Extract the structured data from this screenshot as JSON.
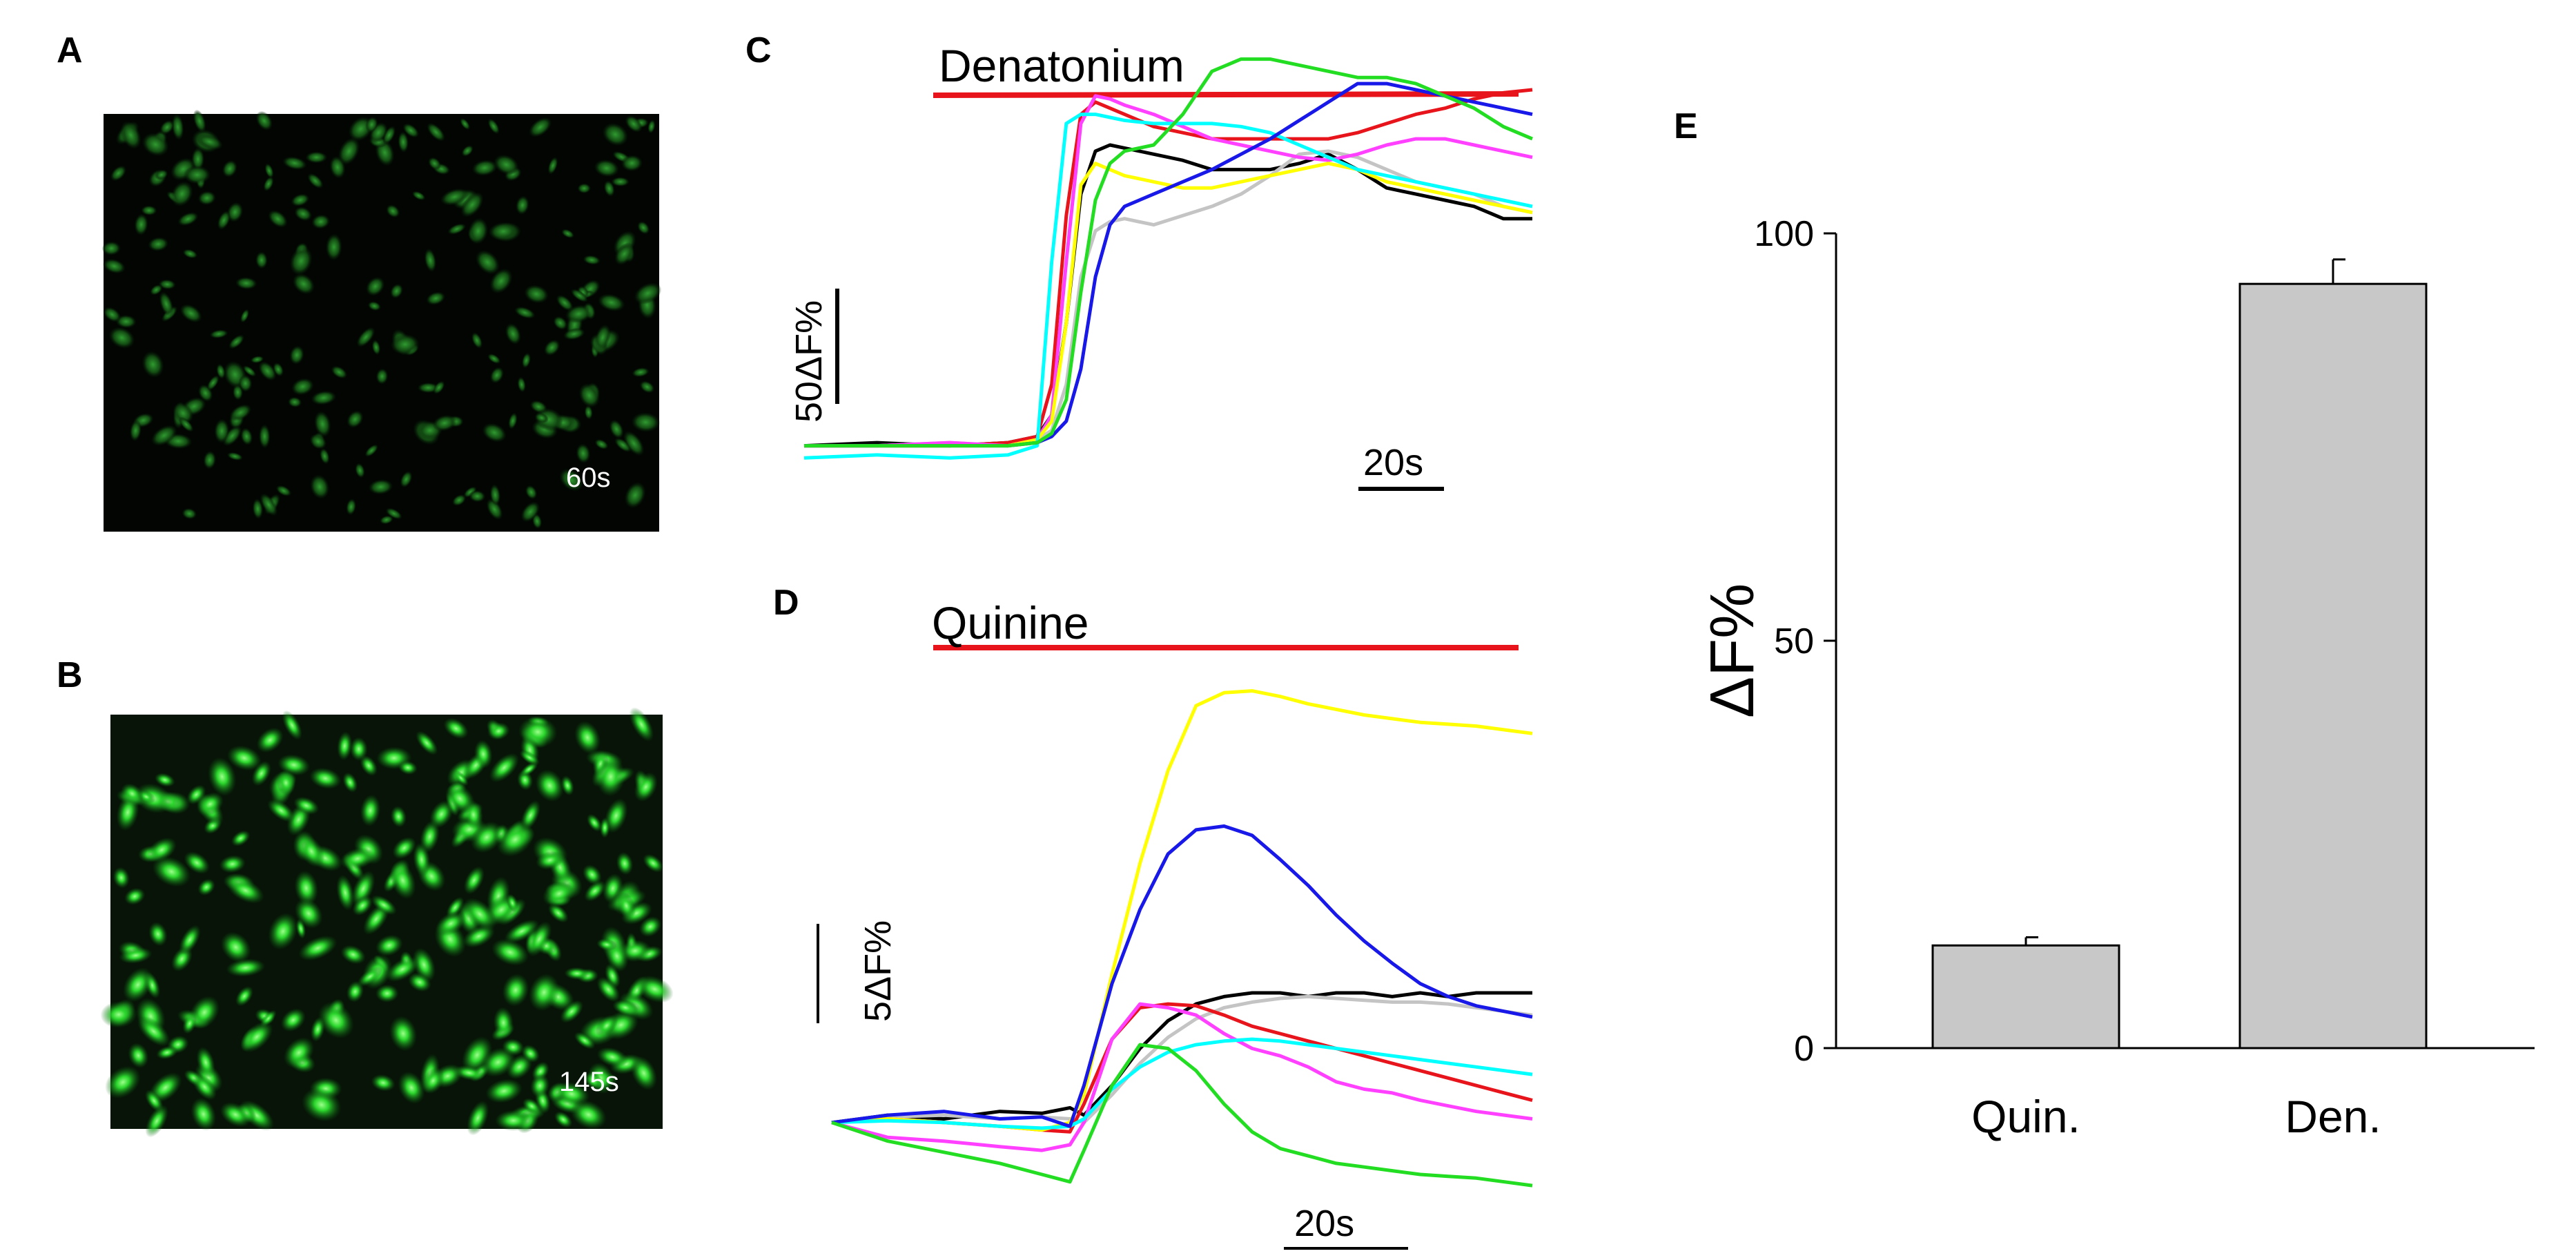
{
  "panel_letters": {
    "a": "A",
    "b": "B",
    "c": "C",
    "d": "D",
    "e": "E"
  },
  "micrographs": {
    "a": {
      "timestamp": "60s"
    },
    "b": {
      "timestamp": "145s"
    }
  },
  "colors": {
    "stim_bar": "#e8141c",
    "cell_bg_dim": "#020502",
    "cell_bg_bright": "#0a1a0a",
    "cell_dim": "#1c7a1c",
    "cell_bright": "#27d22a",
    "bar_fill": "#c8c8c8",
    "traces": [
      "#000000",
      "#c4c4c4",
      "#e8141c",
      "#ff40ff",
      "#ffff00",
      "#00ffff",
      "#1818e8",
      "#22dd22"
    ]
  },
  "chart_data": [
    {
      "type": "line",
      "panel": "C",
      "title": "Denatonium",
      "stimulus_label": "Denatonium",
      "scale_bar_y_label": "50ΔF%",
      "scale_bar_y_value": 50,
      "scale_bar_x_label": "20s",
      "scale_bar_x_value": 20,
      "xlim": [
        0,
        100
      ],
      "ylim": [
        -10,
        125
      ],
      "stimulus_start": 18,
      "stimulus_end": 100,
      "x": [
        0,
        10,
        20,
        28,
        32,
        34,
        36,
        38,
        40,
        42,
        44,
        48,
        52,
        56,
        60,
        64,
        68,
        72,
        76,
        80,
        84,
        88,
        92,
        96,
        100
      ],
      "series": [
        {
          "name": "black",
          "color_index": 0,
          "values": [
            0,
            1,
            0,
            1,
            3,
            10,
            40,
            82,
            96,
            98,
            97,
            95,
            93,
            90,
            90,
            90,
            92,
            95,
            90,
            84,
            82,
            80,
            78,
            74,
            74
          ]
        },
        {
          "name": "gray",
          "color_index": 1,
          "values": [
            0,
            0,
            1,
            0,
            2,
            5,
            20,
            55,
            70,
            73,
            74,
            72,
            75,
            78,
            82,
            88,
            95,
            96,
            94,
            90,
            86,
            84,
            82,
            78,
            76
          ]
        },
        {
          "name": "red",
          "color_index": 2,
          "values": [
            0,
            0,
            0,
            1,
            3,
            20,
            75,
            108,
            112,
            110,
            108,
            104,
            102,
            100,
            100,
            100,
            100,
            100,
            102,
            105,
            108,
            110,
            113,
            115,
            116
          ]
        },
        {
          "name": "magenta",
          "color_index": 3,
          "values": [
            0,
            0,
            1,
            0,
            2,
            10,
            60,
            105,
            114,
            113,
            111,
            108,
            104,
            100,
            98,
            96,
            94,
            93,
            95,
            98,
            100,
            100,
            98,
            96,
            94
          ]
        },
        {
          "name": "yellow",
          "color_index": 4,
          "values": [
            0,
            0,
            0,
            0,
            2,
            8,
            40,
            85,
            92,
            90,
            88,
            86,
            84,
            84,
            86,
            88,
            90,
            92,
            90,
            86,
            84,
            82,
            80,
            78,
            76
          ]
        },
        {
          "name": "cyan",
          "color_index": 5,
          "values": [
            -4,
            -3,
            -4,
            -3,
            0,
            60,
            105,
            108,
            108,
            107,
            106,
            105,
            105,
            105,
            104,
            102,
            98,
            94,
            90,
            88,
            86,
            84,
            82,
            80,
            78
          ]
        },
        {
          "name": "blue",
          "color_index": 6,
          "values": [
            0,
            0,
            0,
            0,
            1,
            3,
            8,
            25,
            55,
            72,
            78,
            82,
            86,
            90,
            95,
            100,
            106,
            112,
            118,
            118,
            116,
            114,
            112,
            110,
            108
          ]
        },
        {
          "name": "green",
          "color_index": 7,
          "values": [
            0,
            0,
            0,
            0,
            1,
            4,
            15,
            50,
            80,
            92,
            96,
            98,
            108,
            122,
            126,
            126,
            124,
            122,
            120,
            120,
            118,
            114,
            110,
            104,
            100
          ]
        }
      ]
    },
    {
      "type": "line",
      "panel": "D",
      "title": "Quinine",
      "stimulus_label": "Quinine",
      "scale_bar_y_label": "5ΔF%",
      "scale_bar_y_value": 5,
      "scale_bar_x_label": "20s",
      "scale_bar_x_value": 20,
      "xlim": [
        0,
        100
      ],
      "ylim": [
        -5,
        25
      ],
      "stimulus_start": 15,
      "stimulus_end": 100,
      "x": [
        0,
        8,
        16,
        24,
        30,
        34,
        36,
        40,
        44,
        48,
        52,
        56,
        60,
        64,
        68,
        72,
        76,
        80,
        84,
        88,
        92,
        96,
        100
      ],
      "series": [
        {
          "name": "black",
          "color_index": 0,
          "values": [
            0,
            0.4,
            0.2,
            0.6,
            0.5,
            0.8,
            0.4,
            2.0,
            4.0,
            5.5,
            6.4,
            6.8,
            7.0,
            7.0,
            6.8,
            7.0,
            7.0,
            6.8,
            7.0,
            6.8,
            7.0,
            7.0,
            7.0
          ]
        },
        {
          "name": "gray",
          "color_index": 1,
          "values": [
            0,
            0.3,
            0.4,
            0.2,
            0.3,
            0.2,
            0,
            1.5,
            3.2,
            4.6,
            5.6,
            6.2,
            6.5,
            6.7,
            6.8,
            6.7,
            6.6,
            6.5,
            6.5,
            6.4,
            6.2,
            6.0,
            5.8
          ]
        },
        {
          "name": "red",
          "color_index": 2,
          "values": [
            0,
            0.2,
            0,
            -0.2,
            -0.4,
            -0.5,
            1.0,
            4.5,
            6.2,
            6.4,
            6.3,
            5.8,
            5.2,
            4.8,
            4.4,
            4.0,
            3.6,
            3.2,
            2.8,
            2.4,
            2.0,
            1.6,
            1.2
          ]
        },
        {
          "name": "magenta",
          "color_index": 3,
          "values": [
            0,
            -0.8,
            -1.0,
            -1.3,
            -1.5,
            -1.2,
            0,
            4.5,
            6.4,
            6.2,
            5.8,
            4.8,
            4.0,
            3.6,
            3.0,
            2.2,
            1.8,
            1.6,
            1.2,
            0.9,
            0.6,
            0.4,
            0.2
          ]
        },
        {
          "name": "yellow",
          "color_index": 4,
          "values": [
            0,
            0.2,
            0,
            -0.2,
            -0.4,
            0,
            1.5,
            8.0,
            14.0,
            19.0,
            22.5,
            23.2,
            23.3,
            23.0,
            22.6,
            22.3,
            22.0,
            21.8,
            21.6,
            21.5,
            21.4,
            21.2,
            21.0
          ]
        },
        {
          "name": "cyan",
          "color_index": 5,
          "values": [
            0,
            0.1,
            0,
            -0.2,
            -0.3,
            -0.2,
            0.2,
            1.8,
            3.0,
            3.8,
            4.2,
            4.4,
            4.5,
            4.4,
            4.2,
            4.0,
            3.8,
            3.6,
            3.4,
            3.2,
            3.0,
            2.8,
            2.6
          ]
        },
        {
          "name": "blue",
          "color_index": 6,
          "values": [
            0,
            0.4,
            0.6,
            0.2,
            0.3,
            -0.2,
            2.0,
            7.5,
            11.5,
            14.5,
            15.8,
            16.0,
            15.5,
            14.2,
            12.8,
            11.2,
            9.8,
            8.6,
            7.5,
            6.8,
            6.3,
            6.0,
            5.7
          ]
        },
        {
          "name": "green",
          "color_index": 7,
          "values": [
            0,
            -1.0,
            -1.6,
            -2.2,
            -2.8,
            -3.2,
            -1.5,
            2.0,
            4.2,
            4.0,
            2.8,
            1.0,
            -0.5,
            -1.4,
            -1.8,
            -2.2,
            -2.4,
            -2.6,
            -2.8,
            -2.9,
            -3.0,
            -3.2,
            -3.4
          ]
        }
      ]
    },
    {
      "type": "bar",
      "panel": "E",
      "categories": [
        "Quin.",
        "Den."
      ],
      "values": [
        12.6,
        93.8
      ],
      "errors": [
        1.0,
        3.0
      ],
      "ylabel": "ΔF%",
      "xlabel": "",
      "ylim": [
        0,
        100
      ],
      "yticks": [
        0,
        50,
        100
      ],
      "ytick_labels": [
        "0",
        "50",
        "100"
      ]
    }
  ]
}
